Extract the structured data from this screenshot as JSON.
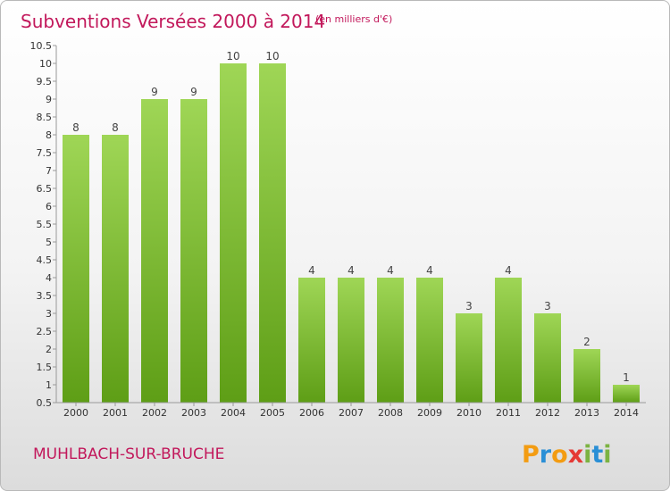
{
  "chart_data": {
    "type": "bar",
    "title": "Subventions Versées 2000 à 2014",
    "subtitle": "(en milliers d'€)",
    "categories": [
      "2000",
      "2001",
      "2002",
      "2003",
      "2004",
      "2005",
      "2006",
      "2007",
      "2008",
      "2009",
      "2010",
      "2011",
      "2012",
      "2013",
      "2014"
    ],
    "values": [
      8,
      8,
      9,
      9,
      10,
      10,
      4,
      4,
      4,
      4,
      3,
      4,
      3,
      2,
      1
    ],
    "ylim": [
      0.5,
      10.5
    ],
    "yticks": [
      "0.5",
      "1",
      "1.5",
      "2",
      "2.5",
      "3",
      "3.5",
      "4",
      "4.5",
      "5",
      "5.5",
      "6",
      "6.5",
      "7",
      "7.5",
      "8",
      "8.5",
      "9",
      "9.5",
      "10",
      "10.5"
    ],
    "xlabel": "",
    "ylabel": "",
    "grid": false,
    "bar_color": "#7cc23a"
  },
  "commune": "MUHLBACH-SUR-BRUCHE",
  "brand": {
    "letters": [
      "P",
      "r",
      "o",
      "x",
      "i",
      "t",
      "i"
    ],
    "colors": [
      "#f39c12",
      "#2a8fd6",
      "#f39c12",
      "#e53935",
      "#7cb342",
      "#2a8fd6",
      "#7cb342"
    ]
  }
}
